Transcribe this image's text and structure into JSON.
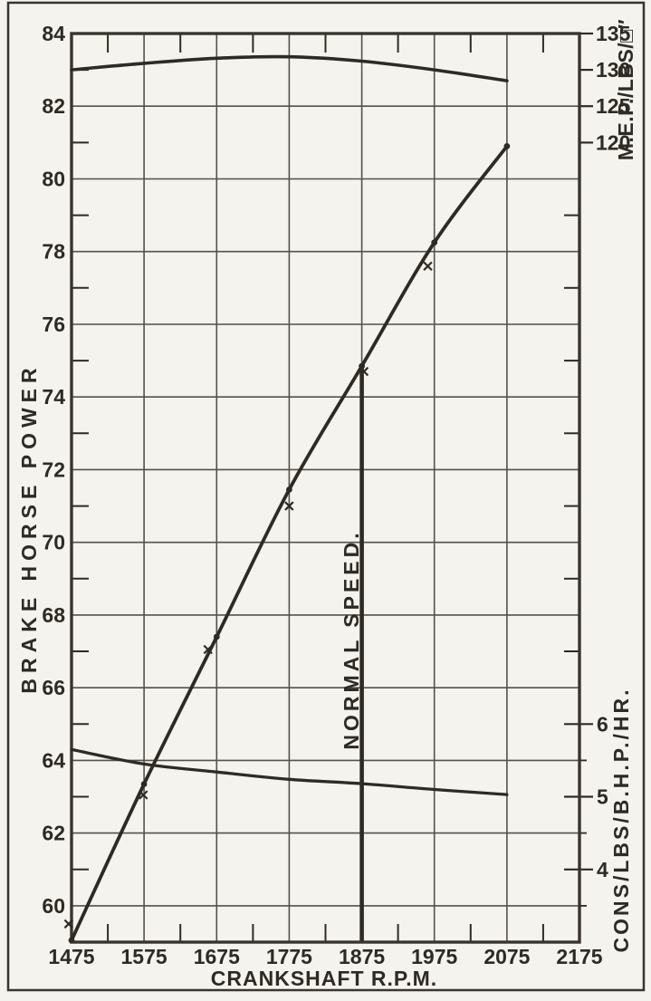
{
  "colors": {
    "paper": "#f5f3ed",
    "ink": "#2e2a24",
    "grid": "#55504a",
    "frame": "#39352e"
  },
  "chart_data": {
    "type": "line",
    "title": "",
    "x_axis": {
      "title": "CRANKSHAFT R.P.M.",
      "range": [
        1475,
        2175
      ],
      "tick_labels": [
        1475,
        1575,
        1675,
        1775,
        1875,
        1975,
        2075,
        2175
      ],
      "minor_ticks": [
        1525,
        1625,
        1725,
        1825,
        1925,
        2025,
        2125
      ],
      "grid": true
    },
    "left_axis": {
      "title": "BRAKE HORSE POWER",
      "range": [
        59,
        84
      ],
      "tick_labels": [
        84,
        82,
        80,
        78,
        76,
        74,
        72,
        70,
        68,
        66,
        64,
        62,
        60
      ],
      "minor_ticks": [
        83,
        81,
        79,
        77,
        75,
        73,
        71,
        69,
        67,
        65,
        63,
        61
      ],
      "grid": true
    },
    "right_axis_mep": {
      "title": "M.E.P./LBS/□″",
      "tick_labels": [
        135,
        130,
        125,
        120
      ],
      "scale_note": "135 aligns with 84 B.H.P., 5 lbs per 1 B.H.P. division"
    },
    "right_axis_cons": {
      "title": "CONS/LBS/B.H.P./HR.",
      "tick_labels": [
        6,
        5,
        4
      ],
      "scale_note": "6 aligns with 65 B.H.P., 1 unit per 2 B.H.P. divisions"
    },
    "right_axis_minor_ticks_bhp": [
      79,
      77,
      75,
      73,
      71,
      69,
      67
    ],
    "x": [
      1475,
      1575,
      1675,
      1775,
      1875,
      1975,
      2075
    ],
    "series": [
      {
        "name": "brake-horse-power",
        "axis": "left",
        "marker": "dot",
        "line": true,
        "values": [
          59.05,
          63.35,
          67.4,
          71.45,
          74.85,
          78.25,
          80.9
        ]
      },
      {
        "name": "brake-horse-power-test-points",
        "axis": "left",
        "marker": "x",
        "line": false,
        "x_override": [
          1471,
          1574,
          1663,
          1775,
          1878,
          1966
        ],
        "values": [
          59.5,
          63.05,
          67.05,
          71.0,
          74.7,
          77.6
        ]
      },
      {
        "name": "mean-effective-pressure",
        "axis": "mep",
        "marker": "none",
        "line": true,
        "values": [
          130.0,
          130.9,
          131.6,
          131.8,
          131.2,
          130.0,
          128.5
        ]
      },
      {
        "name": "fuel-consumption",
        "axis": "cons",
        "marker": "none",
        "line": true,
        "values": [
          5.65,
          5.45,
          5.34,
          5.24,
          5.18,
          5.1,
          5.03
        ]
      }
    ],
    "annotation": {
      "label": "NORMAL SPEED.",
      "rpm": 1875
    }
  }
}
